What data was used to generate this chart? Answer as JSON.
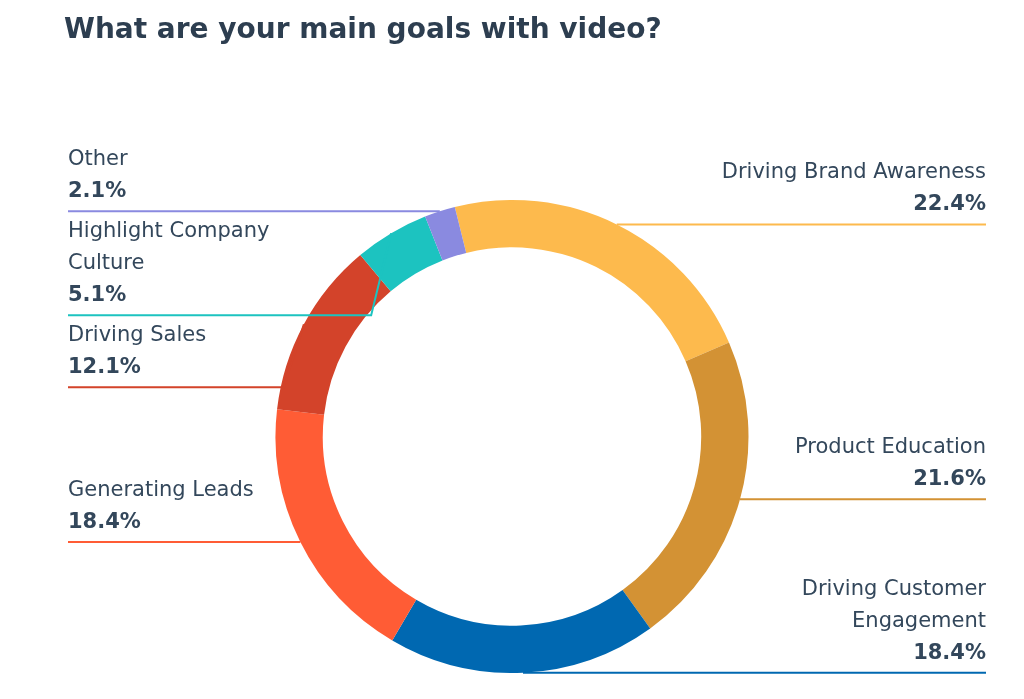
{
  "chart_data": {
    "type": "donut",
    "title": "What are your main goals with video?",
    "categories": [
      "Driving Brand Awareness",
      "Product Education",
      "Driving Customer Engagement",
      "Generating Leads",
      "Driving Sales",
      "Highlight Company Culture",
      "Other"
    ],
    "values": [
      22.4,
      21.6,
      18.4,
      18.4,
      12.1,
      5.1,
      2.1
    ],
    "colors": [
      "#fdba4d",
      "#d39234",
      "#0068b1",
      "#ff5c35",
      "#d3432a",
      "#1cc3c0",
      "#8a8ae0"
    ],
    "value_labels": [
      "22.4%",
      "21.6%",
      "18.4%",
      "18.4%",
      "12.1%",
      "5.1%",
      "2.1%"
    ],
    "legend": false
  }
}
